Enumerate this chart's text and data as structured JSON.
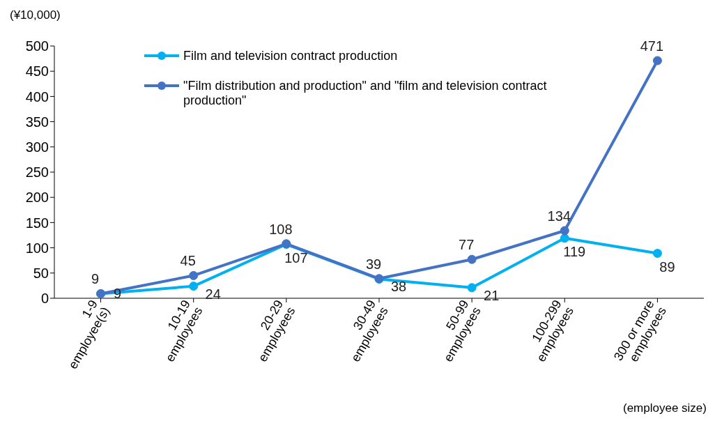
{
  "chart_data": {
    "type": "line",
    "ylabel": "(¥10,000)",
    "xlabel": "(employee size)",
    "categories": [
      "1-9 employee(s)",
      "10-19 employees",
      "20-29 employees",
      "30-49 employees",
      "50-99 employees",
      "100-299 employees",
      "300 or more employees"
    ],
    "series": [
      {
        "name": "Film and television contract production",
        "color": "#00b0f0",
        "values": [
          9,
          24,
          107,
          38,
          21,
          119,
          89
        ]
      },
      {
        "name": "\"Film distribution and production\" and \"film and television contract production\"",
        "color": "#4472c4",
        "values": [
          9,
          45,
          108,
          39,
          77,
          134,
          471
        ]
      }
    ],
    "ylim": [
      0,
      500
    ],
    "yticks": [
      0,
      50,
      100,
      150,
      200,
      250,
      300,
      350,
      400,
      450,
      500
    ],
    "grid": false,
    "legend": "top",
    "marker": "circle",
    "line_style": "solid",
    "data_labels": true
  }
}
